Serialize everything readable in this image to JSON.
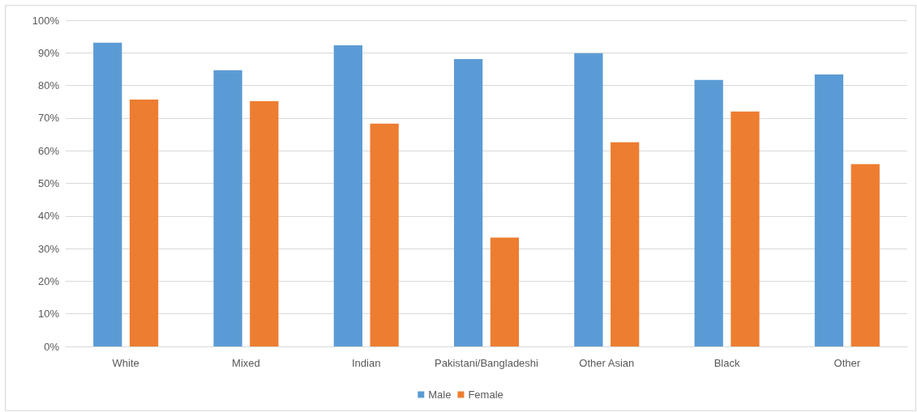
{
  "chart_data": {
    "type": "bar",
    "categories": [
      "White",
      "Mixed",
      "Indian",
      "Pakistani/Bangladeshi",
      "Other Asian",
      "Black",
      "Other"
    ],
    "series": [
      {
        "name": "Male",
        "color": "#5b9bd5",
        "values": [
          93.1,
          84.7,
          92.3,
          88.1,
          89.9,
          81.7,
          83.4
        ]
      },
      {
        "name": "Female",
        "color": "#ed7d31",
        "values": [
          75.7,
          75.2,
          68.3,
          33.4,
          62.6,
          72.0,
          55.9
        ]
      }
    ],
    "ylim": [
      0,
      100
    ],
    "yticks": [
      {
        "value": 0,
        "label": "0%"
      },
      {
        "value": 10,
        "label": "10%"
      },
      {
        "value": 20,
        "label": "20%"
      },
      {
        "value": 30,
        "label": "30%"
      },
      {
        "value": 40,
        "label": "40%"
      },
      {
        "value": 50,
        "label": "50%"
      },
      {
        "value": 60,
        "label": "60%"
      },
      {
        "value": 70,
        "label": "70%"
      },
      {
        "value": 80,
        "label": "80%"
      },
      {
        "value": 90,
        "label": "90%"
      },
      {
        "value": 100,
        "label": "100%"
      }
    ],
    "grid": "y",
    "legend": "bottom"
  }
}
